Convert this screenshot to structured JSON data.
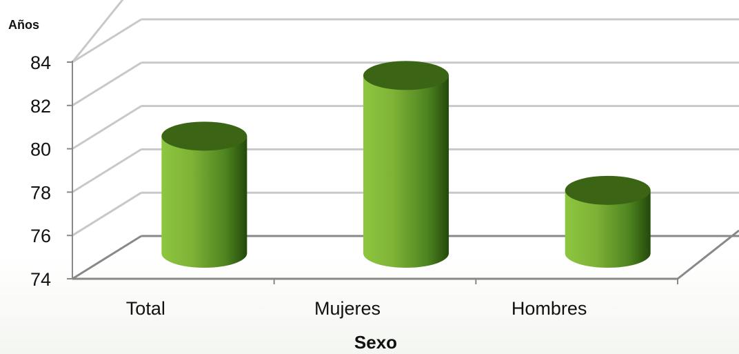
{
  "chart_data": {
    "type": "bar",
    "style": "3d-cylinder",
    "categories": [
      "Total",
      "Mujeres",
      "Hombres"
    ],
    "values": [
      80.2,
      83.0,
      77.7
    ],
    "xlabel": "Sexo",
    "ylabel": "Años",
    "ylim": [
      74,
      84
    ],
    "yticks": [
      "74",
      "76",
      "78",
      "80",
      "82",
      "84"
    ],
    "grid": true,
    "legend": "none",
    "colors": {
      "bar_light": "#8dc63f",
      "bar_dark": "#2c5a0a",
      "bar_top": "#3b6414",
      "grid": "#c8c8c8",
      "axis": "#888888"
    }
  }
}
